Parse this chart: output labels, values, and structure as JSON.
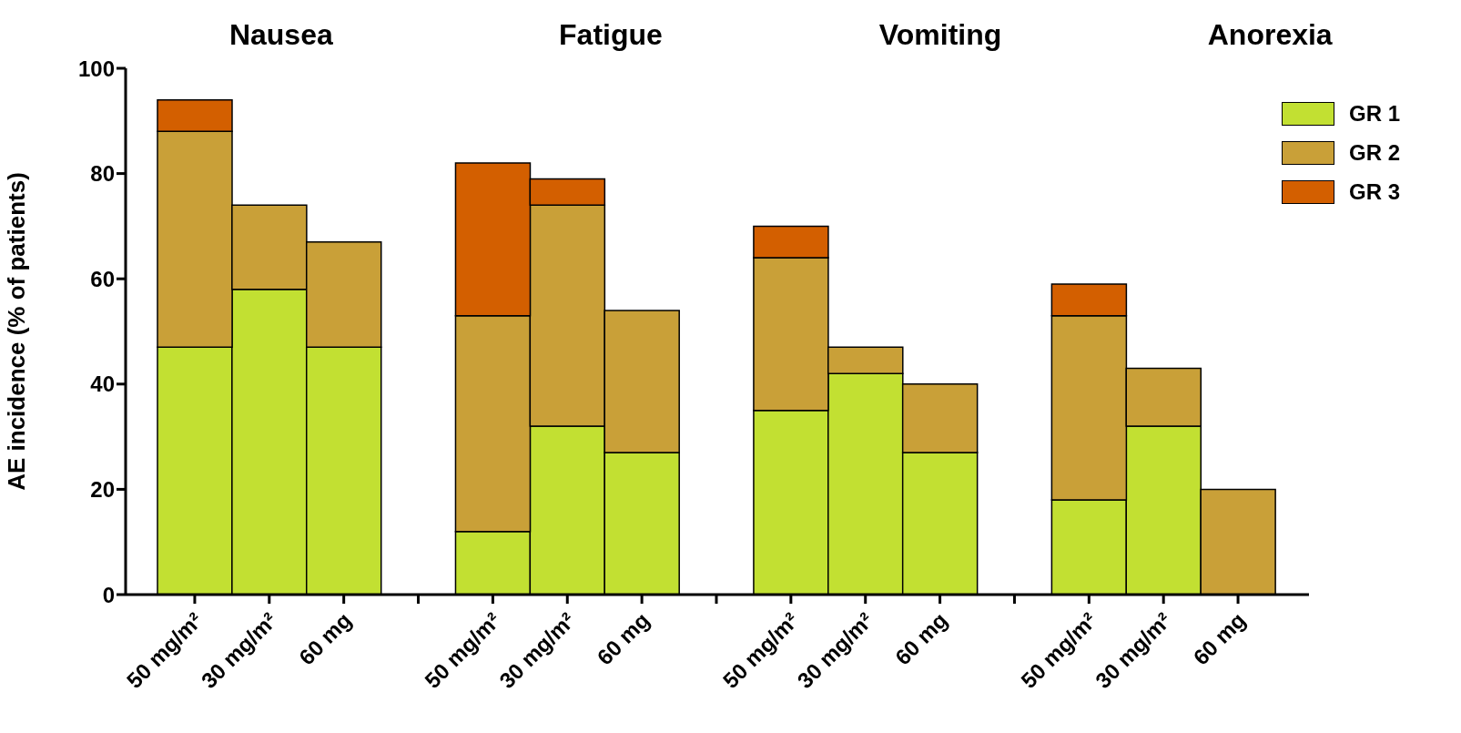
{
  "chart_data": {
    "type": "bar",
    "stacked": true,
    "ylabel": "AE incidence (% of patients)",
    "annotations": [
      "Nausea",
      "Fatigue",
      "Vomiting",
      "Anorexia"
    ],
    "categories": [
      "50 mg/m²",
      "30 mg/m²",
      "60 mg",
      null,
      "50 mg/m²",
      "30 mg/m²",
      "60 mg",
      null,
      "50 mg/m²",
      "30 mg/m²",
      "60 mg",
      null,
      "50 mg/m²",
      "30 mg/m²",
      "60 mg"
    ],
    "series": [
      {
        "name": "GR 1",
        "color": "#c2e032",
        "values": [
          47,
          58,
          47,
          null,
          12,
          32,
          27,
          null,
          35,
          42,
          27,
          null,
          18,
          32,
          null
        ]
      },
      {
        "name": "GR 2",
        "color": "#c9a038",
        "values": [
          41,
          16,
          20,
          null,
          41,
          42,
          27,
          null,
          29,
          5,
          13,
          null,
          35,
          11,
          20
        ]
      },
      {
        "name": "GR 3",
        "color": "#d35f00",
        "values": [
          6,
          null,
          null,
          null,
          29,
          5,
          null,
          null,
          6,
          null,
          null,
          null,
          6,
          null,
          null
        ]
      }
    ],
    "ylim": [
      0,
      100
    ],
    "yticks": [
      0,
      20,
      40,
      60,
      80,
      100
    ],
    "grid": false,
    "legend": "top right"
  }
}
